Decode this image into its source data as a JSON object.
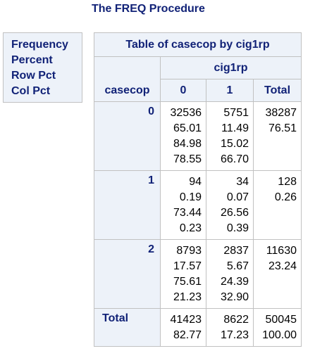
{
  "title": "The FREQ Procedure",
  "legend": [
    "Frequency",
    "Percent",
    "Row Pct",
    "Col Pct"
  ],
  "table": {
    "title": "Table of casecop by cig1rp",
    "col_var": "cig1rp",
    "row_var": "casecop",
    "col_headers": [
      "0",
      "1",
      "Total"
    ],
    "rows": [
      {
        "label": "0",
        "cells": [
          [
            "32536",
            "65.01",
            "84.98",
            "78.55"
          ],
          [
            "5751",
            "11.49",
            "15.02",
            "66.70"
          ],
          [
            "38287",
            "76.51"
          ]
        ]
      },
      {
        "label": "1",
        "cells": [
          [
            "94",
            "0.19",
            "73.44",
            "0.23"
          ],
          [
            "34",
            "0.07",
            "26.56",
            "0.39"
          ],
          [
            "128",
            "0.26"
          ]
        ]
      },
      {
        "label": "2",
        "cells": [
          [
            "8793",
            "17.57",
            "75.61",
            "21.23"
          ],
          [
            "2837",
            "5.67",
            "24.39",
            "32.90"
          ],
          [
            "11630",
            "23.24"
          ]
        ]
      }
    ],
    "total_row": {
      "label": "Total",
      "cells": [
        [
          "41423",
          "82.77"
        ],
        [
          "8622",
          "17.23"
        ],
        [
          "50045",
          "100.00"
        ]
      ]
    }
  }
}
